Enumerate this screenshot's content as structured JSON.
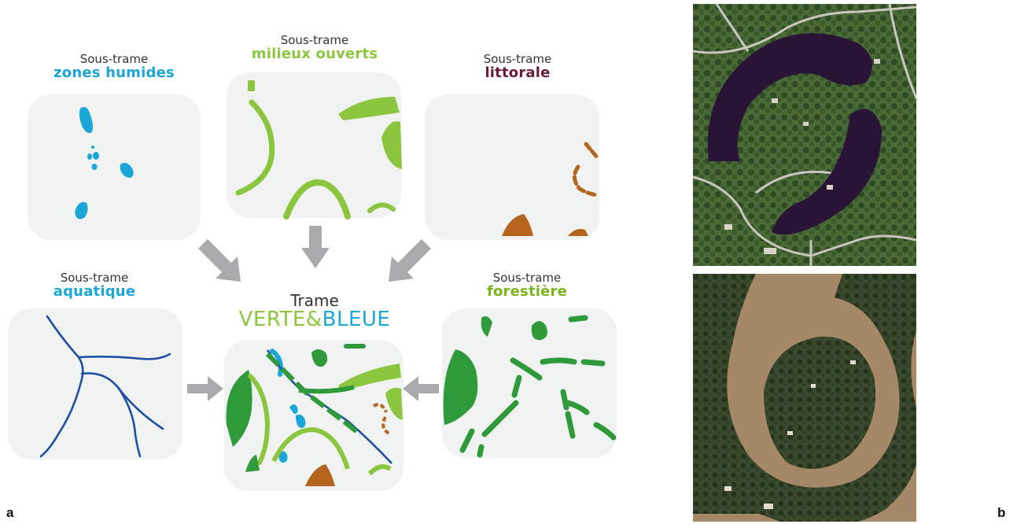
{
  "colors": {
    "humid": "#1aa6d6",
    "open": "#8cc63f",
    "coast": "#b5651d",
    "coast_title": "#6b1a3a",
    "water": "#1f4fa3",
    "forest": "#2e9a3a",
    "forest_title": "#7ab51d",
    "arrow": "#a9aaab",
    "tile": "#f1f2f2"
  },
  "panels": {
    "humides": {
      "prefix": "Sous-trame",
      "name": "zones humides"
    },
    "ouverts": {
      "prefix": "Sous-trame",
      "name": "milieux ouverts"
    },
    "littorale": {
      "prefix": "Sous-trame",
      "name": "littorale"
    },
    "aquatique": {
      "prefix": "Sous-trame",
      "name": "aquatique"
    },
    "forestiere": {
      "prefix": "Sous-trame",
      "name": "forestière"
    },
    "center": {
      "title": "Trame",
      "verte": "VERTE&",
      "bleue": "BLEUE"
    }
  },
  "labels": {
    "a": "a",
    "b": "b"
  }
}
